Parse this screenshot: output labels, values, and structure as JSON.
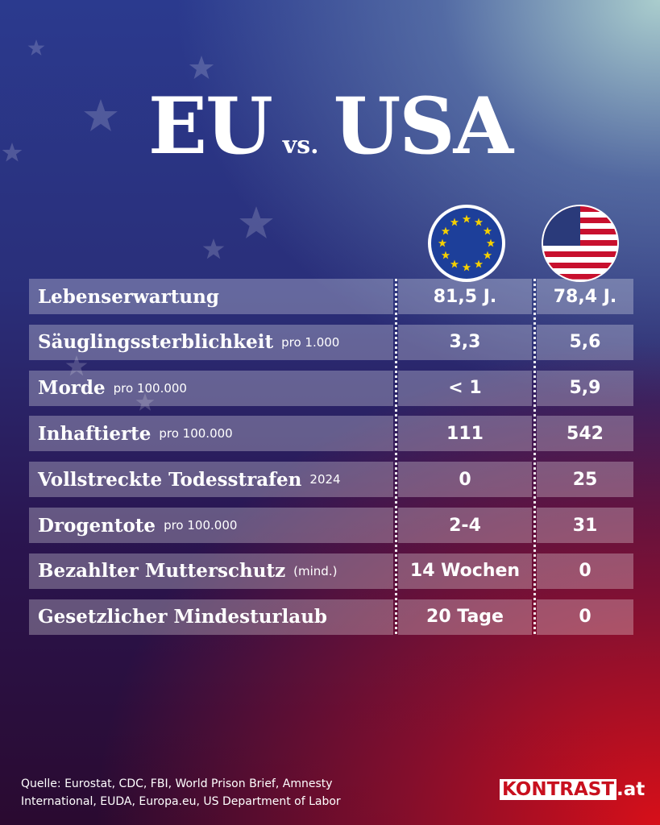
{
  "title": {
    "left": "EU",
    "middle": "vs.",
    "right": "USA"
  },
  "table": {
    "rows": [
      {
        "label": "Lebenserwartung",
        "note": null,
        "eu": "81,5 J.",
        "usa": "78,4 J."
      },
      {
        "label": "Säuglingssterblichkeit",
        "note": "pro 1.000",
        "eu": "3,3",
        "usa": "5,6"
      },
      {
        "label": "Morde",
        "note": "pro 100.000",
        "eu": "< 1",
        "usa": "5,9"
      },
      {
        "label": "Inhaftierte",
        "note": "pro 100.000",
        "eu": "111",
        "usa": "542"
      },
      {
        "label": "Vollstreckte Todesstrafen",
        "note": "2024",
        "eu": "0",
        "usa": "25"
      },
      {
        "label": "Drogentote",
        "note": "pro 100.000",
        "eu": "2-4",
        "usa": "31"
      },
      {
        "label": "Bezahlter Mutterschutz",
        "note": "(mind.)",
        "eu": "14 Wochen",
        "usa": "0"
      },
      {
        "label": "Gesetzlicher Mindesturlaub",
        "note": null,
        "eu": "20 Tage",
        "usa": "0"
      }
    ]
  },
  "footer": {
    "source_line1": "Quelle: Eurostat, CDC, FBI, World Prison Brief, Amnesty",
    "source_line2": "International, EUDA, Europa.eu, US Department of Labor",
    "logo_main": "KONTRAST",
    "logo_suffix": ".at"
  }
}
